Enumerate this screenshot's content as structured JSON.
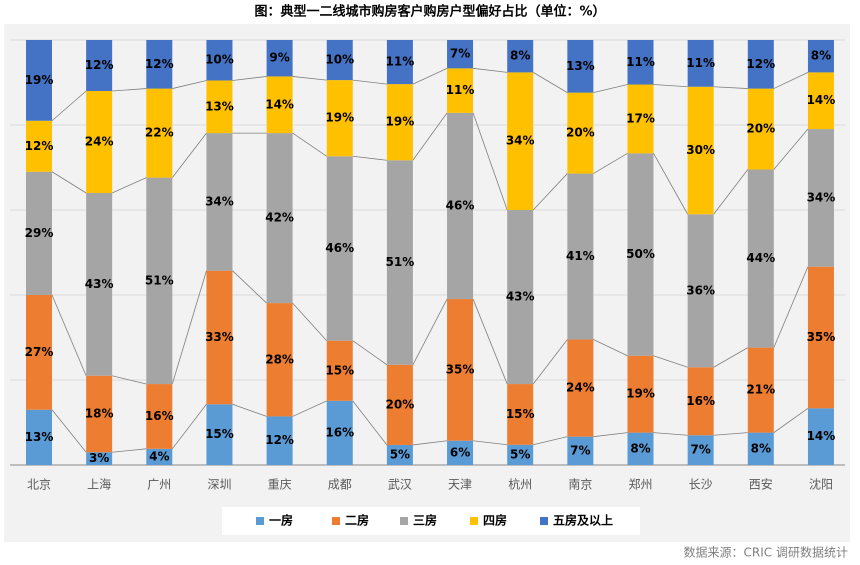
{
  "chart_data": {
    "type": "stacked_percent_bar",
    "title": "图：典型一二线城市购房客户购房户型偏好占比（单位：%）",
    "categories": [
      "北京",
      "上海",
      "广州",
      "深圳",
      "重庆",
      "成都",
      "武汉",
      "天津",
      "杭州",
      "南京",
      "郑州",
      "长沙",
      "西安",
      "沈阳"
    ],
    "series": [
      {
        "name": "一房",
        "color": "#5b9bd5",
        "values": [
          13,
          3,
          4,
          15,
          12,
          16,
          5,
          6,
          5,
          7,
          8,
          7,
          8,
          14
        ],
        "value_labels": [
          "13%",
          "3%",
          "4%",
          "15%",
          "12%",
          "16%",
          "5%",
          "6%",
          "5%",
          "7%",
          "8%",
          "7%",
          "8%",
          "14%"
        ]
      },
      {
        "name": "二房",
        "color": "#ed7d31",
        "values": [
          27,
          18,
          16,
          33,
          28,
          15,
          20,
          35,
          15,
          24,
          19,
          16,
          21,
          35
        ],
        "value_labels": [
          "27%",
          "18%",
          "16%",
          "33%",
          "28%",
          "15%",
          "20%",
          "35%",
          "15%",
          "24%",
          "19%",
          "16%",
          "21%",
          "35%"
        ]
      },
      {
        "name": "三房",
        "color": "#a5a5a5",
        "values": [
          29,
          43,
          51,
          34,
          42,
          46,
          51,
          46,
          43,
          41,
          50,
          36,
          44,
          34
        ],
        "value_labels": [
          "29%",
          "43%",
          "51%",
          "34%",
          "42%",
          "46%",
          "51%",
          "46%",
          "43%",
          "41%",
          "50%",
          "36%",
          "44%",
          "34%"
        ]
      },
      {
        "name": "四房",
        "color": "#ffc000",
        "values": [
          12,
          24,
          22,
          13,
          14,
          19,
          19,
          11,
          34,
          20,
          17,
          30,
          20,
          14
        ],
        "value_labels": [
          "12%",
          "24%",
          "22%",
          "13%",
          "14%",
          "19%",
          "19%",
          "11%",
          "34%",
          "20%",
          "17%",
          "30%",
          "20%",
          "14%"
        ]
      },
      {
        "name": "五房及以上",
        "color": "#4472c4",
        "values": [
          19,
          12,
          12,
          10,
          9,
          10,
          11,
          7,
          8,
          13,
          11,
          11,
          12,
          8
        ],
        "value_labels": [
          "19%",
          "12%",
          "12%",
          "10%",
          "9%",
          "10%",
          "11%",
          "7%",
          "8%",
          "13%",
          "11%",
          "11%",
          "12%",
          "8%"
        ]
      }
    ],
    "source": "数据来源：CRIC 调研数据统计"
  }
}
